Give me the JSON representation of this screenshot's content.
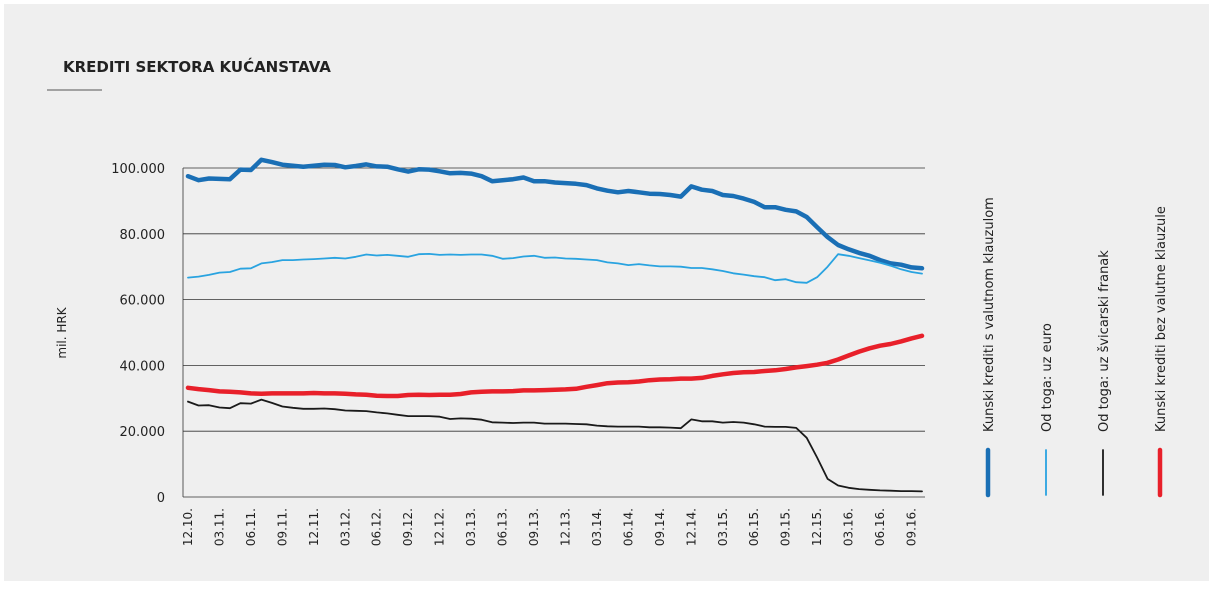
{
  "chart_data": {
    "type": "line",
    "title": "KREDITI SEKTORA KUĆANSTAVA",
    "y_label": "mil. HRK",
    "categories": [
      "12.10.",
      null,
      null,
      "03.11.",
      null,
      null,
      "06.11.",
      null,
      null,
      "09.11.",
      null,
      null,
      "12.11.",
      null,
      null,
      "03.12.",
      null,
      null,
      "06.12.",
      null,
      null,
      "09.12.",
      null,
      null,
      "12.12.",
      null,
      null,
      "03.13.",
      null,
      null,
      "06.13.",
      null,
      null,
      "09.13.",
      null,
      null,
      "12.13.",
      null,
      null,
      "03.14.",
      null,
      null,
      "06.14.",
      null,
      null,
      "09.14.",
      null,
      null,
      "12.14.",
      null,
      null,
      "03.15.",
      null,
      null,
      "06.15.",
      null,
      null,
      "09.15.",
      null,
      null,
      "12.15.",
      null,
      null,
      "03.16.",
      null,
      null,
      "06.16.",
      null,
      null,
      "09.16.",
      null
    ],
    "series": [
      {
        "name": "Kunski krediti s valutnom klauzulom",
        "color": "#1a6fb5",
        "width": 4.5,
        "values": [
          97500,
          96300,
          96800,
          96700,
          96600,
          99500,
          99400,
          102500,
          101800,
          101000,
          100700,
          100400,
          100700,
          101000,
          100900,
          100200,
          100600,
          101100,
          100500,
          100400,
          99600,
          98900,
          99600,
          99500,
          99000,
          98400,
          98500,
          98300,
          97500,
          96000,
          96300,
          96600,
          97100,
          96000,
          96000,
          95600,
          95400,
          95200,
          94800,
          93800,
          93100,
          92600,
          93000,
          92600,
          92200,
          92100,
          91800,
          91300,
          94400,
          93400,
          93000,
          91800,
          91500,
          90700,
          89700,
          88100,
          88100,
          87300,
          86800,
          85100,
          82000,
          79000,
          76600,
          75300,
          74200,
          73300,
          72000,
          71000,
          70600,
          69800,
          69500
        ]
      },
      {
        "name": "Od toga: uz euro",
        "color": "#29a3e0",
        "width": 1.8,
        "values": [
          66700,
          67000,
          67500,
          68200,
          68400,
          69400,
          69500,
          71000,
          71400,
          72000,
          72000,
          72200,
          72300,
          72500,
          72700,
          72500,
          73000,
          73700,
          73400,
          73600,
          73300,
          73000,
          73800,
          73900,
          73600,
          73700,
          73600,
          73700,
          73700,
          73300,
          72400,
          72600,
          73100,
          73300,
          72700,
          72800,
          72500,
          72400,
          72200,
          72000,
          71300,
          71000,
          70500,
          70800,
          70400,
          70100,
          70100,
          70000,
          69600,
          69600,
          69200,
          68700,
          68000,
          67600,
          67100,
          66800,
          65900,
          66200,
          65300,
          65100,
          66800,
          70000,
          73800,
          73300,
          72600,
          71900,
          71200,
          70300,
          69200,
          68400,
          67900
        ]
      },
      {
        "name": "Od toga: uz švicarski franak",
        "color": "#1a1a1a",
        "width": 1.8,
        "values": [
          29000,
          27800,
          27900,
          27200,
          27000,
          28500,
          28400,
          29600,
          28600,
          27500,
          27100,
          26800,
          26800,
          26900,
          26700,
          26300,
          26200,
          26100,
          25700,
          25400,
          25000,
          24600,
          24600,
          24600,
          24400,
          23700,
          23900,
          23800,
          23500,
          22700,
          22600,
          22500,
          22600,
          22600,
          22300,
          22300,
          22300,
          22200,
          22100,
          21700,
          21500,
          21400,
          21400,
          21400,
          21200,
          21200,
          21100,
          20900,
          23600,
          23000,
          23000,
          22600,
          22800,
          22600,
          22100,
          21400,
          21300,
          21300,
          21000,
          18000,
          12000,
          5500,
          3500,
          2800,
          2400,
          2200,
          2000,
          1900,
          1800,
          1800,
          1700
        ]
      },
      {
        "name": "Kunski krediti bez valutne klauzule",
        "color": "#e8202a",
        "width": 4.5,
        "values": [
          33200,
          32800,
          32500,
          32100,
          32000,
          31800,
          31500,
          31400,
          31500,
          31500,
          31500,
          31500,
          31600,
          31500,
          31500,
          31400,
          31200,
          31100,
          30800,
          30700,
          30700,
          31000,
          31100,
          31000,
          31100,
          31100,
          31300,
          31800,
          32000,
          32100,
          32100,
          32200,
          32400,
          32400,
          32500,
          32600,
          32700,
          32900,
          33500,
          34000,
          34600,
          34800,
          34900,
          35100,
          35500,
          35700,
          35800,
          36000,
          36000,
          36200,
          36800,
          37300,
          37700,
          37900,
          38000,
          38300,
          38500,
          38900,
          39400,
          39800,
          40200,
          40800,
          41800,
          43000,
          44200,
          45200,
          46000,
          46500,
          47300,
          48200,
          49000
        ]
      }
    ],
    "ylim": [
      0,
      100000
    ],
    "yticks": [
      0,
      {
        "value": 20000,
        "label": "20.000"
      },
      {
        "value": 40000,
        "label": "40.000"
      },
      {
        "value": 60000,
        "label": "60.000"
      },
      {
        "value": 80000,
        "label": "80.000"
      },
      {
        "value": 100000,
        "label": "100.000"
      }
    ],
    "grid": true,
    "legend": "right"
  }
}
